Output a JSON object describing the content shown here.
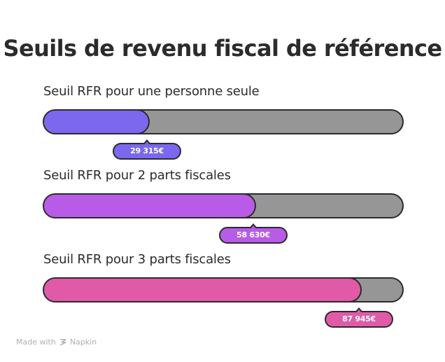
{
  "chart_data": {
    "type": "bar",
    "orientation": "horizontal",
    "title": "Seuils de revenu fiscal de référence",
    "xlim": [
      0,
      100000
    ],
    "grid": false,
    "legend": "none",
    "categories": [
      "Seuil RFR pour une personne seule",
      "Seuil RFR pour 2 parts fiscales",
      "Seuil RFR pour 3 parts fiscales"
    ],
    "values": [
      29315,
      58630,
      87945
    ],
    "value_labels": [
      "29 315€",
      "58 630€",
      "87 945€"
    ],
    "colors": [
      "#7b68ee",
      "#b85be6",
      "#e05aa8"
    ]
  },
  "footer": {
    "made_with": "Made with",
    "brand": "Napkin",
    "icon": "napkin-logo-icon"
  }
}
